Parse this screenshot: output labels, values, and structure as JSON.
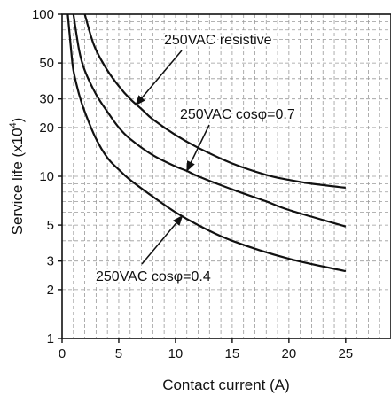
{
  "chart_data": {
    "type": "line",
    "title": "",
    "xlabel": "Contact current (A)",
    "ylabel_main": "Service life (x10",
    "ylabel_sup": "4",
    "ylabel_close": ")",
    "xlim": [
      0,
      29
    ],
    "ylim": [
      1,
      100
    ],
    "yscale": "log",
    "grid": true,
    "x_ticks": [
      0,
      5,
      10,
      15,
      20,
      25
    ],
    "x_tick_labels": [
      "0",
      "5",
      "10",
      "15",
      "20",
      "25"
    ],
    "y_ticks": [
      1,
      2,
      3,
      5,
      10,
      20,
      30,
      50,
      100
    ],
    "y_tick_labels": [
      "1",
      "2",
      "3",
      "5",
      "10",
      "20",
      "30",
      "50",
      "100"
    ],
    "series": [
      {
        "name": "250VAC resistive",
        "x": [
          2.0,
          2.5,
          3.0,
          4.0,
          5.0,
          6.0,
          7.0,
          8.0,
          10.0,
          12.0,
          15.0,
          18.0,
          20.0,
          22.0,
          25.0
        ],
        "y": [
          100,
          75,
          60,
          45,
          36,
          30,
          26,
          22.5,
          18,
          15,
          12,
          10.2,
          9.5,
          9.0,
          8.5
        ]
      },
      {
        "name": "250VAC cosφ=0.7",
        "x": [
          1.0,
          1.5,
          2.0,
          3.0,
          4.0,
          5.0,
          6.0,
          8.0,
          10.0,
          11.0,
          12.0,
          15.0,
          18.0,
          20.0,
          25.0
        ],
        "y": [
          100,
          60,
          45,
          32,
          25,
          20,
          17,
          13.5,
          11.5,
          10.8,
          10.0,
          8.3,
          7.0,
          6.2,
          4.9
        ]
      },
      {
        "name": "250VAC cosφ=0.4",
        "x": [
          0.5,
          0.8,
          1.0,
          1.5,
          2.0,
          3.0,
          4.0,
          5.0,
          6.0,
          8.0,
          10.0,
          12.0,
          15.0,
          20.0,
          25.0
        ],
        "y": [
          100,
          60,
          45,
          32,
          25,
          17,
          13,
          11,
          9.5,
          7.5,
          6.0,
          5.0,
          4.0,
          3.1,
          2.6
        ]
      }
    ],
    "annotations": [
      {
        "text": "250VAC resistive",
        "arrow_to_series": 0
      },
      {
        "text": "250VAC cosφ=0.7",
        "arrow_to_series": 1
      },
      {
        "text": "250VAC cosφ=0.4",
        "arrow_to_series": 2
      }
    ]
  }
}
